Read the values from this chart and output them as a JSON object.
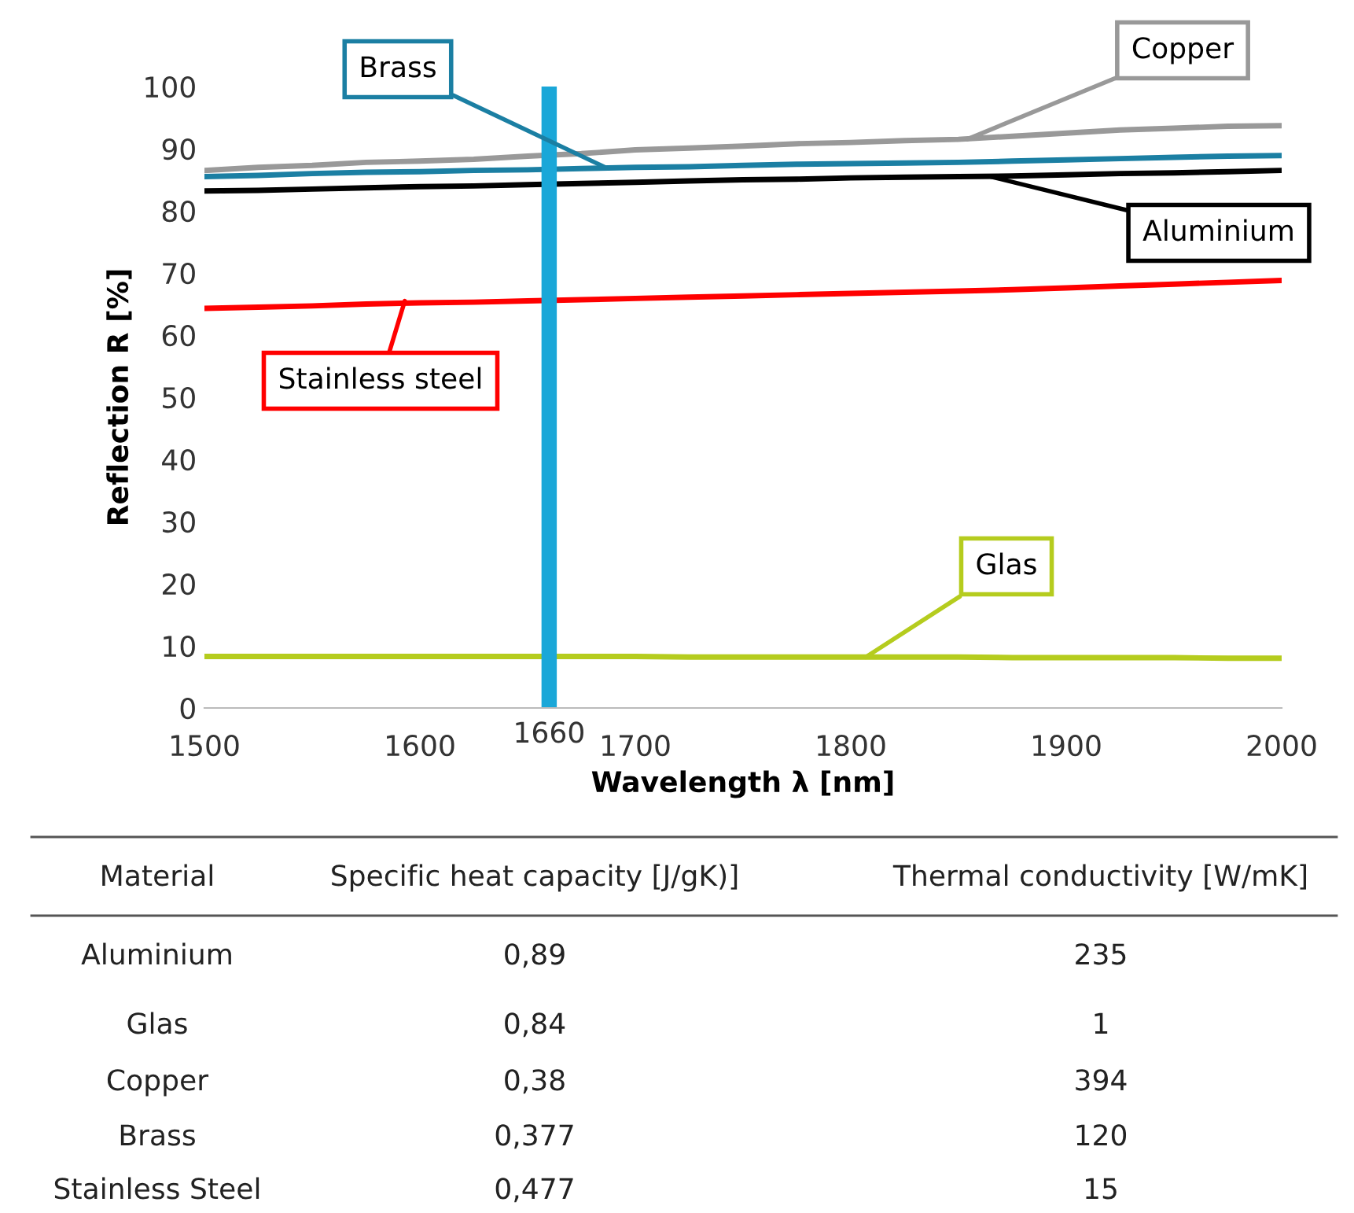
{
  "chart_data": [
    {
      "type": "line",
      "xlabel": "Wavelength λ [nm]",
      "ylabel": "Reflection R [%]",
      "xlim": [
        1500,
        2000
      ],
      "xticks": [
        1500,
        1600,
        1700,
        1800,
        1900,
        2000
      ],
      "ylim": [
        0,
        100
      ],
      "yticks": [
        0,
        10,
        20,
        30,
        40,
        50,
        60,
        70,
        80,
        90,
        100
      ],
      "grid": false,
      "legend": false,
      "marker": "none",
      "line_style": "solid",
      "x": [
        1500,
        1525,
        1550,
        1575,
        1600,
        1625,
        1650,
        1675,
        1700,
        1725,
        1750,
        1775,
        1800,
        1825,
        1850,
        1875,
        1900,
        1925,
        1950,
        1975,
        2000
      ],
      "series": [
        {
          "color": "#999999",
          "values": [
            86.5,
            87,
            87.3,
            87.8,
            88,
            88.3,
            88.8,
            89.2,
            89.8,
            90.1,
            90.4,
            90.8,
            91,
            91.3,
            91.5,
            92,
            92.5,
            93,
            93.3,
            93.6,
            93.7
          ]
        },
        {
          "color": "#1b7fa3",
          "values": [
            85.5,
            85.7,
            86,
            86.2,
            86.3,
            86.5,
            86.6,
            86.8,
            87,
            87.1,
            87.3,
            87.5,
            87.6,
            87.7,
            87.8,
            88,
            88.2,
            88.4,
            88.6,
            88.8,
            88.9
          ]
        },
        {
          "color": "#000000",
          "values": [
            83.2,
            83.3,
            83.5,
            83.7,
            83.9,
            84,
            84.2,
            84.4,
            84.6,
            84.8,
            85,
            85.1,
            85.3,
            85.4,
            85.5,
            85.6,
            85.8,
            86,
            86.1,
            86.3,
            86.5
          ]
        },
        {
          "color": "#ff0000",
          "values": [
            64.3,
            64.5,
            64.7,
            65,
            65.2,
            65.3,
            65.5,
            65.7,
            65.9,
            66.1,
            66.3,
            66.5,
            66.7,
            66.9,
            67.1,
            67.3,
            67.6,
            67.9,
            68.2,
            68.5,
            68.8
          ]
        },
        {
          "color": "#b5cc1e",
          "values": [
            8.3,
            8.3,
            8.3,
            8.3,
            8.3,
            8.3,
            8.3,
            8.3,
            8.3,
            8.2,
            8.2,
            8.2,
            8.2,
            8.2,
            8.2,
            8.1,
            8.1,
            8.1,
            8.1,
            8,
            8
          ]
        }
      ],
      "annotations": [
        {
          "text": "Copper",
          "x": 1854,
          "y": 91.5
        },
        {
          "text": "Brass",
          "x": 1686,
          "y": 87
        },
        {
          "text": "Aluminium",
          "x": 1865,
          "y": 85.5
        },
        {
          "text": "Stainless steel",
          "x": 1593,
          "y": 65.5
        },
        {
          "text": "Glas",
          "x": 1807,
          "y": 8.2
        }
      ],
      "ref_lines": [
        {
          "axis": "x",
          "value": 1660,
          "label": "1660",
          "color": "#1aa7d8"
        }
      ]
    },
    {
      "type": "other",
      "annotations": [
        "Material",
        "Specific heat capacity [J/gK)]",
        "Thermal conductivity [W/mK]",
        "Aluminium",
        "0,89",
        "235",
        "Glas",
        "0,84",
        "1",
        "Copper",
        "0,38",
        "394",
        "Brass",
        "0,377",
        "120",
        "Stainless Steel",
        "0,477",
        "15"
      ]
    }
  ]
}
